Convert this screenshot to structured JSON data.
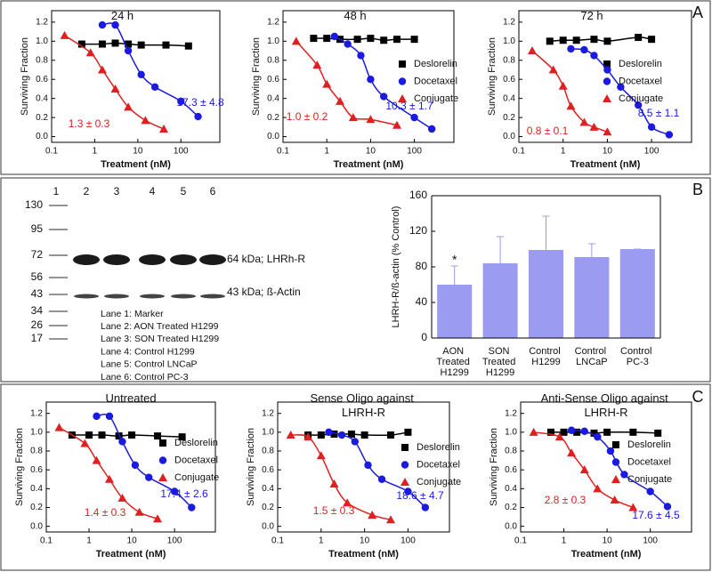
{
  "panels": [
    "A",
    "B",
    "C"
  ],
  "chart_data": [
    {
      "type": "scatter",
      "title": "24 h",
      "xlabel": "Treatment (nM)",
      "ylabel": "Surviving Fraction",
      "xscale": "log",
      "xlim": [
        0.1,
        800
      ],
      "ylim": [
        -0.06,
        1.32
      ],
      "xticks": [
        0.1,
        1,
        10,
        100
      ],
      "yticks": [
        {
          "value": 0,
          "label": "0.0"
        },
        0.2,
        0.4,
        0.6,
        0.8,
        {
          "value": 1,
          "label": "1.0"
        },
        1.2
      ],
      "series": [
        {
          "name": "Deslorelin",
          "color": "#000000",
          "marker": "square",
          "x": [
            0.5,
            1.5,
            3,
            6,
            12,
            45,
            150
          ],
          "values": [
            0.97,
            0.97,
            0.98,
            0.97,
            0.96,
            0.96,
            0.95
          ]
        },
        {
          "name": "Docetaxel",
          "color": "#1a1ae0",
          "marker": "circle",
          "x": [
            1.5,
            3,
            6,
            12,
            25,
            100,
            250
          ],
          "values": [
            1.17,
            1.17,
            0.9,
            0.65,
            0.52,
            0.37,
            0.21
          ]
        },
        {
          "name": "Conjugate",
          "color": "#e02020",
          "marker": "triangle",
          "x": [
            0.2,
            0.8,
            1.5,
            3,
            6,
            15,
            40
          ],
          "values": [
            1.06,
            0.88,
            0.7,
            0.5,
            0.31,
            0.17,
            0.08
          ]
        }
      ],
      "annotations": [
        {
          "text": "1.3 ± 0.3",
          "color": "#e02020"
        },
        {
          "text": "17.3 ± 4.8",
          "color": "#1a1ae0"
        }
      ]
    },
    {
      "type": "scatter",
      "title": "48 h",
      "xlabel": "Treatment (nM)",
      "ylabel": "Surviving Fraction",
      "xscale": "log",
      "xlim": [
        0.1,
        800
      ],
      "ylim": [
        -0.06,
        1.32
      ],
      "xticks": [
        0.1,
        1,
        10,
        100
      ],
      "yticks": [
        {
          "value": 0,
          "label": "0.0"
        },
        0.2,
        0.4,
        0.6,
        0.8,
        {
          "value": 1,
          "label": "1.0"
        },
        1.2
      ],
      "legend": "right",
      "series": [
        {
          "name": "Deslorelin",
          "color": "#000000",
          "marker": "square",
          "x": [
            0.5,
            1,
            2,
            5,
            10,
            20,
            40,
            100
          ],
          "values": [
            1.03,
            1.03,
            1.02,
            1.02,
            1.03,
            1.01,
            1.02,
            1.02
          ]
        },
        {
          "name": "Docetaxel",
          "color": "#1a1ae0",
          "marker": "circle",
          "x": [
            1.5,
            3,
            6,
            10,
            20,
            100,
            250
          ],
          "values": [
            1.05,
            0.97,
            0.85,
            0.6,
            0.42,
            0.2,
            0.08
          ]
        },
        {
          "name": "Conjugate",
          "color": "#e02020",
          "marker": "triangle",
          "x": [
            0.2,
            0.6,
            1,
            2,
            4,
            10,
            40
          ],
          "values": [
            1.0,
            0.75,
            0.55,
            0.37,
            0.2,
            0.18,
            0.12
          ]
        }
      ],
      "annotations": [
        {
          "text": "1.0 ± 0.2",
          "color": "#e02020"
        },
        {
          "text": "10.3 ± 1.7",
          "color": "#1a1ae0"
        }
      ]
    },
    {
      "type": "scatter",
      "title": "72 h",
      "xlabel": "Treatment (nM)",
      "ylabel": "Surviving Fraction",
      "xscale": "log",
      "xlim": [
        0.1,
        800
      ],
      "ylim": [
        -0.06,
        1.32
      ],
      "xticks": [
        0.1,
        1,
        10,
        100
      ],
      "yticks": [
        {
          "value": 0,
          "label": "0.0"
        },
        0.2,
        0.4,
        0.6,
        0.8,
        {
          "value": 1,
          "label": "1.0"
        },
        1.2
      ],
      "legend": "right",
      "series": [
        {
          "name": "Deslorelin",
          "color": "#000000",
          "marker": "square",
          "x": [
            0.5,
            1,
            2,
            5,
            10,
            50,
            100
          ],
          "values": [
            1.0,
            1.01,
            1.01,
            1.02,
            1.0,
            1.04,
            1.02
          ]
        },
        {
          "name": "Docetaxel",
          "color": "#1a1ae0",
          "marker": "circle",
          "x": [
            1.5,
            3,
            5,
            10,
            20,
            50,
            100,
            250
          ],
          "values": [
            0.92,
            0.91,
            0.85,
            0.7,
            0.52,
            0.33,
            0.1,
            0.02
          ]
        },
        {
          "name": "Conjugate",
          "color": "#e02020",
          "marker": "triangle",
          "x": [
            0.2,
            0.6,
            1,
            1.5,
            3,
            5,
            10
          ],
          "values": [
            0.9,
            0.7,
            0.53,
            0.32,
            0.15,
            0.1,
            0.05
          ]
        }
      ],
      "annotations": [
        {
          "text": "0.8 ± 0.1",
          "color": "#e02020"
        },
        {
          "text": "8.5 ± 1.1",
          "color": "#1a1ae0"
        }
      ]
    },
    {
      "type": "bar",
      "ylabel": "LHRH-R/ß-actin (% Control)",
      "categories": [
        "AON Treated H1299",
        "SON Treated H1299",
        "Control H1299",
        "Control LNCaP",
        "Control PC-3"
      ],
      "values": [
        60,
        84,
        99,
        91,
        100
      ],
      "errors": [
        21,
        30,
        38,
        15,
        0
      ],
      "color": "#9b9bf2",
      "ylim": [
        0,
        160
      ],
      "yticks": [
        0,
        40,
        80,
        120,
        160
      ],
      "annotations": [
        {
          "text": "*"
        }
      ]
    },
    {
      "type": "scatter",
      "title": "Untreated",
      "xlabel": "Treatment (nM)",
      "ylabel": "Surviving Fraction",
      "xscale": "log",
      "xlim": [
        0.1,
        900
      ],
      "ylim": [
        -0.06,
        1.32
      ],
      "xticks": [
        0.1,
        1,
        10,
        100
      ],
      "yticks": [
        {
          "value": 0,
          "label": "0.0"
        },
        0.2,
        0.4,
        0.6,
        0.8,
        {
          "value": 1,
          "label": "1.0"
        },
        1.2
      ],
      "legend": "right",
      "series": [
        {
          "name": "Deslorelin",
          "color": "#000000",
          "marker": "square",
          "x": [
            0.4,
            1,
            2,
            5,
            10,
            40,
            150
          ],
          "values": [
            0.97,
            0.97,
            0.97,
            0.96,
            0.97,
            0.96,
            0.95
          ]
        },
        {
          "name": "Docetaxel",
          "color": "#1a1ae0",
          "marker": "circle",
          "x": [
            1.5,
            3,
            6,
            12,
            25,
            100,
            250
          ],
          "values": [
            1.17,
            1.17,
            0.9,
            0.65,
            0.52,
            0.37,
            0.2
          ]
        },
        {
          "name": "Conjugate",
          "color": "#e02020",
          "marker": "triangle",
          "x": [
            0.2,
            0.8,
            1.5,
            3,
            6,
            15,
            40
          ],
          "values": [
            1.05,
            0.88,
            0.7,
            0.5,
            0.3,
            0.15,
            0.08
          ]
        }
      ],
      "annotations": [
        {
          "text": "1.4 ± 0.3",
          "color": "#e02020"
        },
        {
          "text": "17.4 ± 2.6",
          "color": "#1a1ae0"
        }
      ]
    },
    {
      "type": "scatter",
      "title": "Sense Oligo against LHRH-R",
      "xlabel": "Treatment (nM)",
      "ylabel": "Surviving Fraction",
      "xscale": "log",
      "xlim": [
        0.1,
        900
      ],
      "ylim": [
        -0.06,
        1.32
      ],
      "xticks": [
        0.1,
        1,
        10,
        100
      ],
      "yticks": [
        {
          "value": 0,
          "label": "0.0"
        },
        0.2,
        0.4,
        0.6,
        0.8,
        {
          "value": 1,
          "label": "1.0"
        },
        1.2
      ],
      "legend": "right",
      "series": [
        {
          "name": "Deslorelin",
          "color": "#000000",
          "marker": "square",
          "x": [
            0.5,
            1,
            2,
            5,
            10,
            40,
            100
          ],
          "values": [
            0.97,
            0.97,
            0.98,
            0.98,
            0.97,
            0.97,
            1.0
          ]
        },
        {
          "name": "Docetaxel",
          "color": "#1a1ae0",
          "marker": "circle",
          "x": [
            1.5,
            3,
            6,
            12,
            25,
            100,
            250
          ],
          "values": [
            1.0,
            0.97,
            0.9,
            0.65,
            0.5,
            0.37,
            0.2
          ]
        },
        {
          "name": "Conjugate",
          "color": "#e02020",
          "marker": "triangle",
          "x": [
            0.2,
            0.5,
            1,
            2,
            4,
            15,
            40
          ],
          "values": [
            0.97,
            0.95,
            0.75,
            0.45,
            0.25,
            0.12,
            0.07
          ]
        }
      ],
      "annotations": [
        {
          "text": "1.5 ± 0.3",
          "color": "#e02020"
        },
        {
          "text": "18.6 ± 4.7",
          "color": "#1a1ae0"
        }
      ]
    },
    {
      "type": "scatter",
      "title": "Anti-Sense Oligo against LHRH-R",
      "xlabel": "Treatment (nM)",
      "ylabel": "Surviving Fraction",
      "xscale": "log",
      "xlim": [
        0.1,
        900
      ],
      "ylim": [
        -0.06,
        1.32
      ],
      "xticks": [
        0.1,
        1,
        10,
        100
      ],
      "yticks": [
        {
          "value": 0,
          "label": "0.0"
        },
        0.2,
        0.4,
        0.6,
        0.8,
        {
          "value": 1,
          "label": "1.0"
        },
        1.2
      ],
      "legend": "right",
      "series": [
        {
          "name": "Deslorelin",
          "color": "#000000",
          "marker": "square",
          "x": [
            0.5,
            1,
            2,
            5,
            10,
            40,
            150
          ],
          "values": [
            1.0,
            1.0,
            1.0,
            0.99,
            1.0,
            1.0,
            0.99
          ]
        },
        {
          "name": "Docetaxel",
          "color": "#1a1ae0",
          "marker": "circle",
          "x": [
            1.5,
            3,
            6,
            12,
            25,
            100,
            250
          ],
          "values": [
            1.02,
            1.01,
            0.95,
            0.8,
            0.55,
            0.37,
            0.21
          ]
        },
        {
          "name": "Conjugate",
          "color": "#e02020",
          "marker": "triangle",
          "x": [
            0.2,
            0.8,
            1.5,
            3,
            6,
            15,
            40
          ],
          "values": [
            1.0,
            0.95,
            0.78,
            0.6,
            0.4,
            0.28,
            0.2
          ]
        }
      ],
      "annotations": [
        {
          "text": "2.8 ± 0.3",
          "color": "#e02020"
        },
        {
          "text": "17.6 ± 4.5",
          "color": "#1a1ae0"
        }
      ]
    }
  ],
  "blot": {
    "lanes": [
      "1",
      "2",
      "3",
      "4",
      "5",
      "6"
    ],
    "markers": [
      "130",
      "95",
      "72",
      "56",
      "43",
      "34",
      "26",
      "17"
    ],
    "band_labels": [
      "64 kDa; LHRh-R",
      "43 kDa; ß-Actin"
    ],
    "lane_legend": [
      "Lane 1: Marker",
      "Lane 2: AON Treated H1299",
      "Lane 3: SON Treated H1299",
      "Lane 4: Control H1299",
      "Lane 5: Control LNCaP",
      "Lane 6: Control PC-3"
    ]
  }
}
